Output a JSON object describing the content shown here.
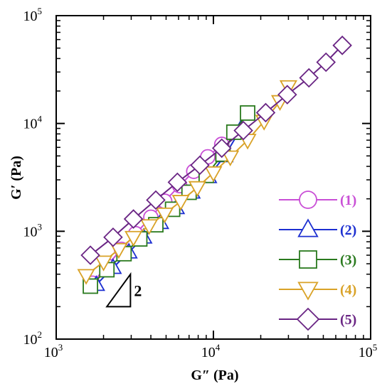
{
  "chart_data": {
    "type": "scatter",
    "xlabel": "G″ (Pa)",
    "ylabel": "G′ (Pa)",
    "xscale": "log",
    "yscale": "log",
    "xlim": [
      1000,
      100000
    ],
    "ylim": [
      100,
      100000
    ],
    "xticks": [
      {
        "base": "10",
        "exp": "3"
      },
      {
        "base": "10",
        "exp": "4"
      },
      {
        "base": "10",
        "exp": "5"
      }
    ],
    "yticks": [
      {
        "base": "10",
        "exp": "2"
      },
      {
        "base": "10",
        "exp": "3"
      },
      {
        "base": "10",
        "exp": "4"
      },
      {
        "base": "10",
        "exp": "5"
      }
    ],
    "grid": false,
    "legend_position": "bottom-right",
    "annotation": {
      "text": "2",
      "type": "slope-triangle",
      "slope": 2
    },
    "series": [
      {
        "name": "(1)",
        "marker": "circle",
        "color": "#c94fd6",
        "x": [
          1700,
          2100,
          2600,
          3200,
          4000,
          4900,
          6100,
          7500,
          9200,
          11300
        ],
        "y": [
          330,
          480,
          680,
          950,
          1350,
          1900,
          2650,
          3600,
          4900,
          6400
        ]
      },
      {
        "name": "(2)",
        "marker": "triangle-up",
        "color": "#1c2fd1",
        "x": [
          1800,
          2300,
          2900,
          3600,
          4600,
          5800,
          7300,
          9300,
          11800,
          15000
        ],
        "y": [
          320,
          460,
          640,
          880,
          1200,
          1650,
          2300,
          3200,
          5000,
          9000
        ]
      },
      {
        "name": "(3)",
        "marker": "square",
        "color": "#2a7a1e",
        "x": [
          1650,
          2100,
          2700,
          3400,
          4300,
          5500,
          7000,
          9000,
          11500,
          13500,
          16500
        ],
        "y": [
          310,
          440,
          620,
          850,
          1150,
          1600,
          2300,
          3300,
          5200,
          8300,
          12500
        ]
      },
      {
        "name": "(4)",
        "marker": "triangle-down",
        "color": "#d9a227",
        "x": [
          1550,
          2000,
          2500,
          3100,
          3900,
          4900,
          6200,
          7900,
          10000,
          12800,
          16500,
          21000,
          26500,
          30000
        ],
        "y": [
          390,
          520,
          680,
          880,
          1130,
          1450,
          1900,
          2550,
          3500,
          4900,
          7000,
          10500,
          16000,
          22000
        ]
      },
      {
        "name": "(5)",
        "marker": "diamond",
        "color": "#6a2584",
        "x": [
          1650,
          2300,
          3100,
          4300,
          5900,
          8200,
          11300,
          15500,
          21500,
          29500,
          40500,
          52000,
          66000
        ],
        "y": [
          600,
          880,
          1300,
          1950,
          2850,
          4100,
          5900,
          8600,
          12600,
          18500,
          26500,
          37000,
          53000
        ]
      }
    ]
  }
}
